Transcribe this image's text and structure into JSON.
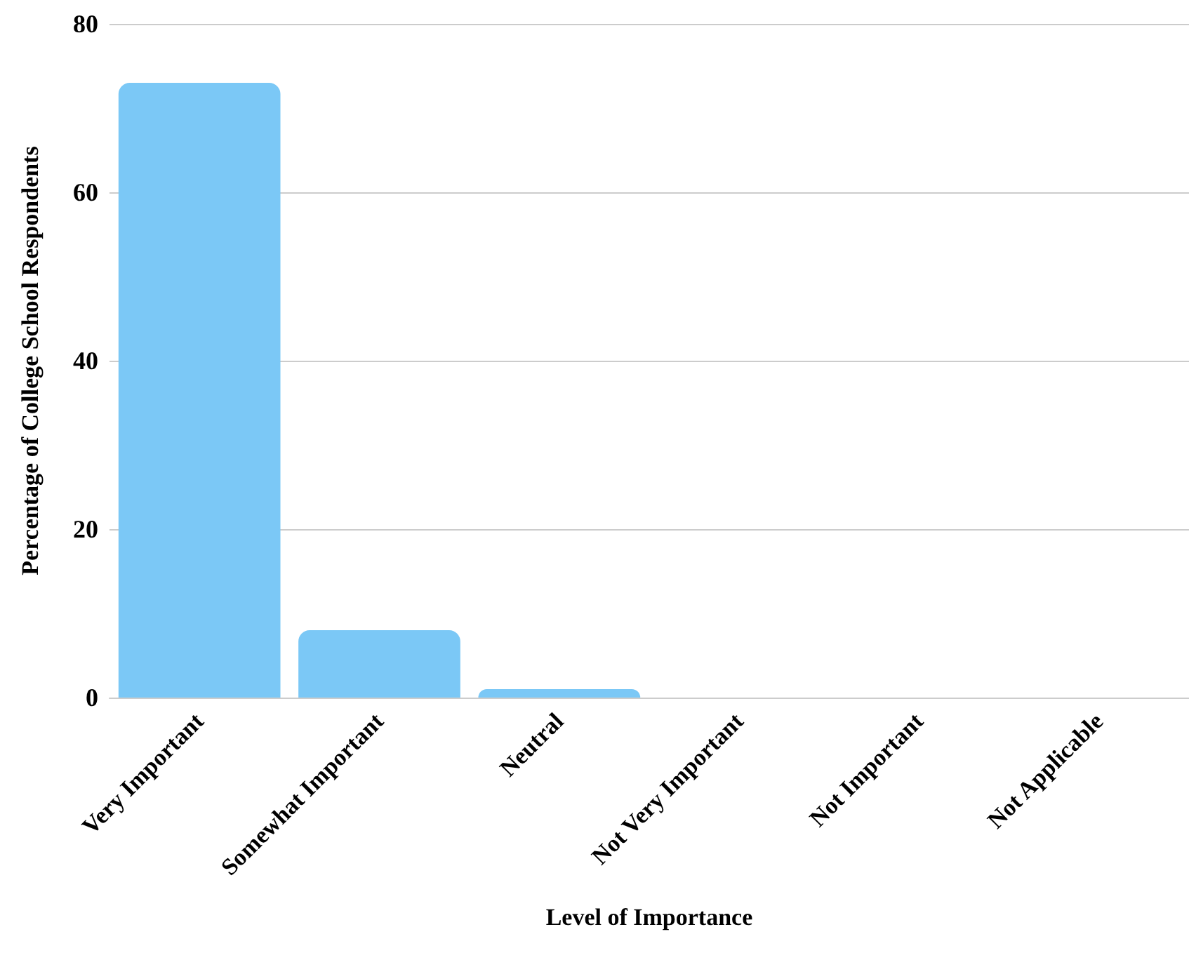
{
  "chart_data": {
    "type": "bar",
    "xlabel": "Level of Importance",
    "ylabel": "Percentage of College School Respondents",
    "categories": [
      "Very Important",
      "Somewhat Important",
      "Neutral",
      "Not Very Important",
      "Not Important",
      "Not Applicable"
    ],
    "values": [
      73,
      8,
      1,
      0,
      0,
      0
    ],
    "color": "#7bc8f6",
    "ylim": [
      0,
      80
    ],
    "yticks": [
      0,
      20,
      40,
      60,
      80
    ],
    "grid": "y"
  }
}
